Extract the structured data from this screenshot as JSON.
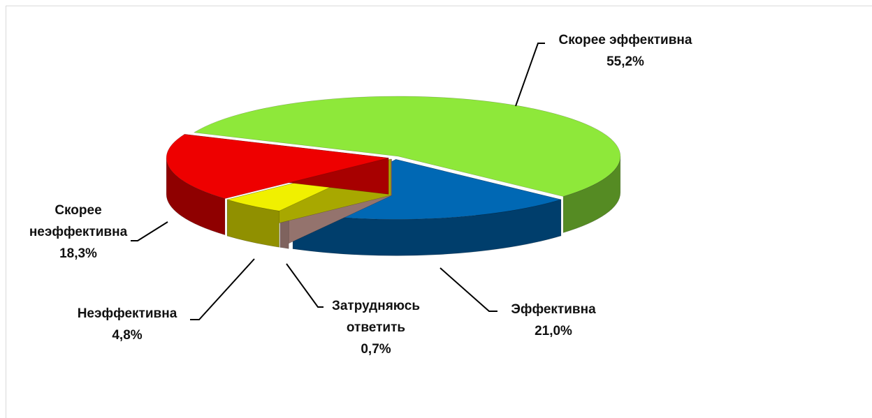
{
  "chart_data": {
    "type": "pie3d",
    "categories": [
      "Скорее эффективна",
      "Эффективна",
      "Затрудняюсь ответить",
      "Неэффективна",
      "Скорее неэффективна"
    ],
    "values": [
      55.2,
      21.0,
      0.7,
      4.8,
      18.3
    ],
    "value_labels": [
      "55,2%",
      "21,0%",
      "0,7%",
      "4,8%",
      "18,3%"
    ],
    "colors": [
      "#8ee83a",
      "#0068b4",
      "#d4a59c",
      "#f0f000",
      "#ee0000"
    ]
  }
}
